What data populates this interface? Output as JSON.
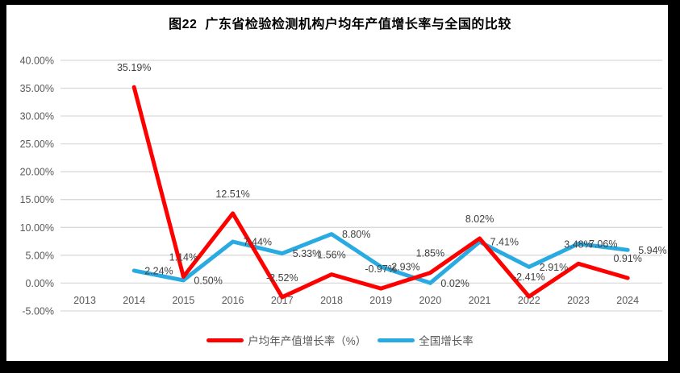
{
  "figure": {
    "title": "图22  广东省检验检测机构户均年产值增长率与全国的比较"
  },
  "chart_data": {
    "type": "line",
    "title": "图22  广东省检验检测机构户均年产值增长率与全国的比较",
    "categories": [
      "2013",
      "2014",
      "2015",
      "2016",
      "2017",
      "2018",
      "2019",
      "2020",
      "2021",
      "2022",
      "2023",
      "2024"
    ],
    "series": [
      {
        "name": "户均年产值增长率（%）",
        "color": "#FF0000",
        "label_position": "above",
        "values": [
          null,
          35.19,
          1.14,
          12.51,
          -2.52,
          1.56,
          -0.97,
          1.85,
          8.02,
          -2.41,
          3.48,
          0.91
        ]
      },
      {
        "name": "全国增长率",
        "color": "#29ABE2",
        "label_position": "right",
        "values": [
          null,
          2.24,
          0.5,
          7.44,
          5.33,
          8.8,
          2.93,
          0.02,
          7.41,
          2.91,
          7.06,
          5.94
        ]
      }
    ],
    "yticks": [
      {
        "value": 40,
        "label": "40.00%"
      },
      {
        "value": 35,
        "label": "35.00%"
      },
      {
        "value": 30,
        "label": "30.00%"
      },
      {
        "value": 25,
        "label": "25.00%"
      },
      {
        "value": 20,
        "label": "20.00%"
      },
      {
        "value": 15,
        "label": "15.00%"
      },
      {
        "value": 10,
        "label": "10.00%"
      },
      {
        "value": 5,
        "label": "5.00%"
      },
      {
        "value": 0,
        "label": "0.00%"
      },
      {
        "value": -5,
        "label": "-5.00%"
      }
    ],
    "ylim": [
      -5,
      40
    ],
    "label_format": "0.00%",
    "grid": "horizontal",
    "gridline_color": "#D9D9D9",
    "legend_position": "bottom"
  }
}
